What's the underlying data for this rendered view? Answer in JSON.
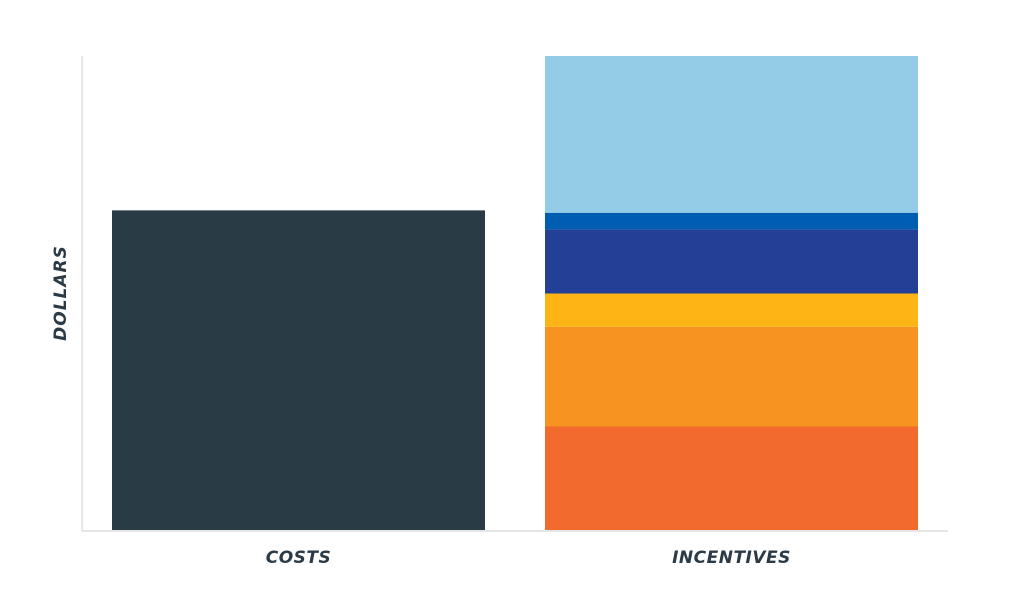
{
  "chart_data": {
    "type": "bar",
    "stacked": true,
    "title": "",
    "xlabel": "",
    "ylabel": "DOLLARS",
    "ylim": [
      0,
      100
    ],
    "grid": false,
    "legend": "none",
    "y_tick_labels_shown": false,
    "categories": [
      "COSTS",
      "INCENTIVES"
    ],
    "series": [
      {
        "color": "#293c46",
        "values": [
          67.5,
          0
        ]
      },
      {
        "color": "#f26a2e",
        "values": [
          0,
          22
        ]
      },
      {
        "color": "#f79321",
        "values": [
          0,
          21
        ]
      },
      {
        "color": "#fdb515",
        "values": [
          0,
          7
        ]
      },
      {
        "color": "#233f96",
        "values": [
          0,
          13.5
        ]
      },
      {
        "color": "#005eb2",
        "values": [
          0,
          3.5
        ]
      },
      {
        "color": "#94cbe7",
        "values": [
          0,
          33
        ]
      }
    ]
  }
}
